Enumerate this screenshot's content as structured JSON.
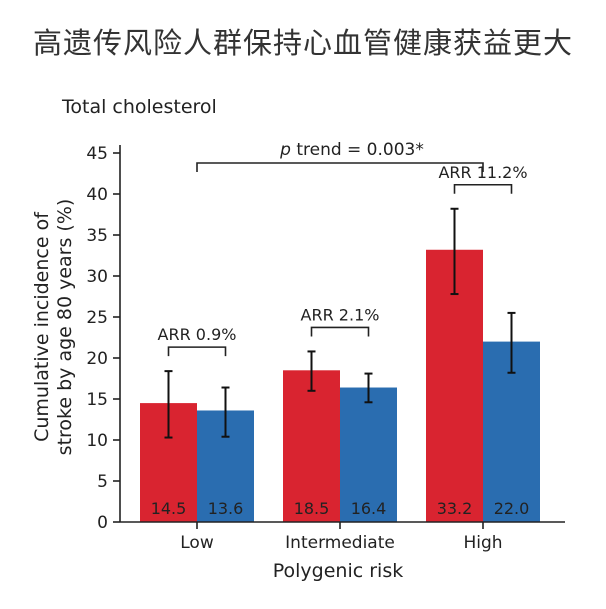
{
  "headline": "高遗传风险人群保持心血管健康获益更大",
  "chart_data": {
    "type": "bar",
    "title": "Total cholesterol",
    "xlabel": "Polygenic risk",
    "ylabel_line1": "Cumulative incidence of",
    "ylabel_line2": "stroke by age 80 years (%)",
    "ylim": [
      0,
      45
    ],
    "yticks": [
      0,
      5,
      10,
      15,
      20,
      25,
      30,
      35,
      40,
      45
    ],
    "categories": [
      "Low",
      "Intermediate",
      "High"
    ],
    "series": [
      {
        "color": "#d92430",
        "values": [
          14.5,
          18.5,
          33.2
        ],
        "labels": [
          "14.5",
          "18.5",
          "33.2"
        ],
        "err_low": [
          10.3,
          16.0,
          27.8
        ],
        "err_high": [
          18.4,
          20.8,
          38.2
        ]
      },
      {
        "color": "#2a6db0",
        "values": [
          13.6,
          16.4,
          22.0
        ],
        "labels": [
          "13.6",
          "16.4",
          "22.0"
        ],
        "err_low": [
          10.4,
          14.6,
          18.2
        ],
        "err_high": [
          16.4,
          18.1,
          25.5
        ]
      }
    ],
    "arr_labels": [
      "ARR 0.9%",
      "ARR 2.1%",
      "ARR 11.2%"
    ],
    "trend_label_p": "p",
    "trend_label_rest": " trend = 0.003*",
    "grid": false
  }
}
